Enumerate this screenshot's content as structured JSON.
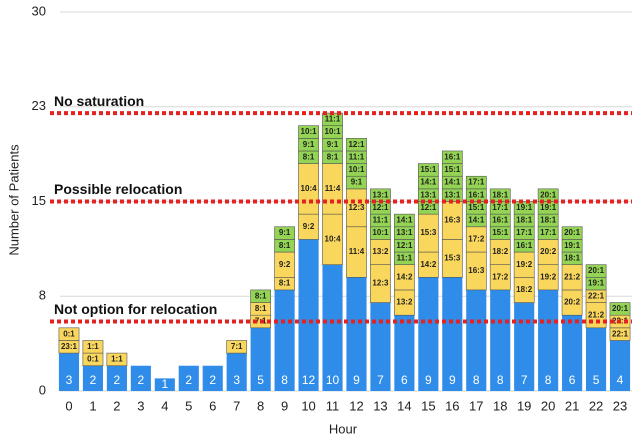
{
  "chart_data": {
    "type": "stacked-bar",
    "y_label": "Number of Patients",
    "x_label": "Hour",
    "categories": [
      "0",
      "1",
      "2",
      "3",
      "4",
      "5",
      "6",
      "7",
      "8",
      "9",
      "10",
      "11",
      "12",
      "13",
      "14",
      "15",
      "16",
      "17",
      "18",
      "19",
      "20",
      "21",
      "22",
      "23"
    ],
    "ylim": [
      0,
      30
    ],
    "yticks": [
      0,
      {
        "value": 7.5,
        "label": "8"
      },
      15,
      {
        "value": 22.5,
        "label": "23"
      },
      30
    ],
    "grid": true,
    "reference_lines": [
      {
        "label": "No saturation",
        "value": 22,
        "color": "#e52222"
      },
      {
        "label": "Possible relocation",
        "value": 15,
        "color": "#e52222"
      },
      {
        "label": "Not option for relocation",
        "value": 5.5,
        "color": "#e52222"
      }
    ],
    "bars": [
      {
        "segments": [
          {
            "value": 3,
            "color": "#2f8ce8"
          },
          {
            "value": 1,
            "label": "23:1",
            "color": "#f9d65c"
          },
          {
            "value": 1,
            "label": "0:1",
            "color": "#f9d65c"
          }
        ]
      },
      {
        "segments": [
          {
            "value": 2,
            "color": "#2f8ce8"
          },
          {
            "value": 1,
            "label": "0:1",
            "color": "#f9d65c"
          },
          {
            "value": 1,
            "label": "1:1",
            "color": "#f9d65c"
          }
        ]
      },
      {
        "segments": [
          {
            "value": 2,
            "color": "#2f8ce8"
          },
          {
            "value": 1,
            "label": "1:1",
            "color": "#f9d65c"
          }
        ]
      },
      {
        "segments": [
          {
            "value": 2,
            "color": "#2f8ce8"
          }
        ]
      },
      {
        "segments": [
          {
            "value": 1,
            "color": "#2f8ce8"
          }
        ]
      },
      {
        "segments": [
          {
            "value": 2,
            "color": "#2f8ce8"
          }
        ]
      },
      {
        "segments": [
          {
            "value": 2,
            "color": "#2f8ce8"
          }
        ]
      },
      {
        "segments": [
          {
            "value": 3,
            "color": "#2f8ce8"
          },
          {
            "value": 1,
            "label": "7:1",
            "color": "#f9d65c"
          }
        ]
      },
      {
        "segments": [
          {
            "value": 5,
            "color": "#2f8ce8"
          },
          {
            "value": 1,
            "label": "7:1",
            "color": "#f9d65c"
          },
          {
            "value": 1,
            "label": "8:1",
            "color": "#f9d65c"
          },
          {
            "value": 1,
            "label": "8:1",
            "color": "#94d454"
          }
        ]
      },
      {
        "segments": [
          {
            "value": 8,
            "color": "#2f8ce8"
          },
          {
            "value": 1,
            "label": "8:1",
            "color": "#f9d65c"
          },
          {
            "value": 2,
            "label": "9:2",
            "color": "#f9d65c"
          },
          {
            "value": 1,
            "label": "8:1",
            "color": "#94d454"
          },
          {
            "value": 1,
            "label": "9:1",
            "color": "#94d454"
          }
        ]
      },
      {
        "segments": [
          {
            "value": 12,
            "color": "#2f8ce8"
          },
          {
            "value": 2,
            "label": "9:2",
            "color": "#f9d65c"
          },
          {
            "value": 4,
            "label": "10:4",
            "color": "#f9d65c"
          },
          {
            "value": 1,
            "label": "8:1",
            "color": "#94d454"
          },
          {
            "value": 1,
            "label": "9:1",
            "color": "#94d454"
          },
          {
            "value": 1,
            "label": "10:1",
            "color": "#94d454"
          }
        ]
      },
      {
        "segments": [
          {
            "value": 10,
            "color": "#2f8ce8"
          },
          {
            "value": 4,
            "label": "10:4",
            "color": "#f9d65c"
          },
          {
            "value": 4,
            "label": "11:4",
            "color": "#f9d65c"
          },
          {
            "value": 1,
            "label": "8:1",
            "color": "#94d454"
          },
          {
            "value": 1,
            "label": "9:1",
            "color": "#94d454"
          },
          {
            "value": 1,
            "label": "10:1",
            "color": "#94d454"
          },
          {
            "value": 1,
            "label": "11:1",
            "color": "#94d454"
          }
        ]
      },
      {
        "segments": [
          {
            "value": 9,
            "color": "#2f8ce8"
          },
          {
            "value": 4,
            "label": "11:4",
            "color": "#f9d65c"
          },
          {
            "value": 3,
            "label": "12:3",
            "color": "#f9d65c"
          },
          {
            "value": 1,
            "label": "9:1",
            "color": "#94d454"
          },
          {
            "value": 1,
            "label": "10:1",
            "color": "#94d454"
          },
          {
            "value": 1,
            "label": "11:1",
            "color": "#94d454"
          },
          {
            "value": 1,
            "label": "12:1",
            "color": "#94d454"
          }
        ]
      },
      {
        "segments": [
          {
            "value": 7,
            "color": "#2f8ce8"
          },
          {
            "value": 3,
            "label": "12:3",
            "color": "#f9d65c"
          },
          {
            "value": 2,
            "label": "13:2",
            "color": "#f9d65c"
          },
          {
            "value": 1,
            "label": "10:1",
            "color": "#94d454"
          },
          {
            "value": 1,
            "label": "11:1",
            "color": "#94d454"
          },
          {
            "value": 1,
            "label": "12:1",
            "color": "#94d454"
          },
          {
            "value": 1,
            "label": "13:1",
            "color": "#94d454"
          }
        ]
      },
      {
        "segments": [
          {
            "value": 6,
            "color": "#2f8ce8"
          },
          {
            "value": 2,
            "label": "13:2",
            "color": "#f9d65c"
          },
          {
            "value": 2,
            "label": "14:2",
            "color": "#f9d65c"
          },
          {
            "value": 1,
            "label": "11:1",
            "color": "#94d454"
          },
          {
            "value": 1,
            "label": "12:1",
            "color": "#94d454"
          },
          {
            "value": 1,
            "label": "13:1",
            "color": "#94d454"
          },
          {
            "value": 1,
            "label": "14:1",
            "color": "#94d454"
          }
        ]
      },
      {
        "segments": [
          {
            "value": 9,
            "color": "#2f8ce8"
          },
          {
            "value": 2,
            "label": "14:2",
            "color": "#f9d65c"
          },
          {
            "value": 3,
            "label": "15:3",
            "color": "#f9d65c"
          },
          {
            "value": 1,
            "label": "12:1",
            "color": "#94d454"
          },
          {
            "value": 1,
            "label": "13:1",
            "color": "#94d454"
          },
          {
            "value": 1,
            "label": "14:1",
            "color": "#94d454"
          },
          {
            "value": 1,
            "label": "15:1",
            "color": "#94d454"
          }
        ]
      },
      {
        "segments": [
          {
            "value": 9,
            "color": "#2f8ce8"
          },
          {
            "value": 3,
            "label": "15:3",
            "color": "#f9d65c"
          },
          {
            "value": 3,
            "label": "16:3",
            "color": "#f9d65c"
          },
          {
            "value": 1,
            "label": "13:1",
            "color": "#94d454"
          },
          {
            "value": 1,
            "label": "14:1",
            "color": "#94d454"
          },
          {
            "value": 1,
            "label": "15:1",
            "color": "#94d454"
          },
          {
            "value": 1,
            "label": "16:1",
            "color": "#94d454"
          }
        ]
      },
      {
        "segments": [
          {
            "value": 8,
            "color": "#2f8ce8"
          },
          {
            "value": 3,
            "label": "16:3",
            "color": "#f9d65c"
          },
          {
            "value": 2,
            "label": "17:2",
            "color": "#f9d65c"
          },
          {
            "value": 1,
            "label": "14:1",
            "color": "#94d454"
          },
          {
            "value": 1,
            "label": "15:1",
            "color": "#94d454"
          },
          {
            "value": 1,
            "label": "16:1",
            "color": "#94d454"
          },
          {
            "value": 1,
            "label": "17:1",
            "color": "#94d454"
          }
        ]
      },
      {
        "segments": [
          {
            "value": 8,
            "color": "#2f8ce8"
          },
          {
            "value": 2,
            "label": "17:2",
            "color": "#f9d65c"
          },
          {
            "value": 2,
            "label": "18:2",
            "color": "#f9d65c"
          },
          {
            "value": 1,
            "label": "15:1",
            "color": "#94d454"
          },
          {
            "value": 1,
            "label": "16:1",
            "color": "#94d454"
          },
          {
            "value": 1,
            "label": "17:1",
            "color": "#94d454"
          },
          {
            "value": 1,
            "label": "18:1",
            "color": "#94d454"
          }
        ]
      },
      {
        "segments": [
          {
            "value": 7,
            "color": "#2f8ce8"
          },
          {
            "value": 2,
            "label": "18:2",
            "color": "#f9d65c"
          },
          {
            "value": 2,
            "label": "19:2",
            "color": "#f9d65c"
          },
          {
            "value": 1,
            "label": "16:1",
            "color": "#94d454"
          },
          {
            "value": 1,
            "label": "17:1",
            "color": "#94d454"
          },
          {
            "value": 1,
            "label": "18:1",
            "color": "#94d454"
          },
          {
            "value": 1,
            "label": "19:1",
            "color": "#94d454"
          }
        ]
      },
      {
        "segments": [
          {
            "value": 8,
            "color": "#2f8ce8"
          },
          {
            "value": 2,
            "label": "19:2",
            "color": "#f9d65c"
          },
          {
            "value": 2,
            "label": "20:2",
            "color": "#f9d65c"
          },
          {
            "value": 1,
            "label": "17:1",
            "color": "#94d454"
          },
          {
            "value": 1,
            "label": "18:1",
            "color": "#94d454"
          },
          {
            "value": 1,
            "label": "19:1",
            "color": "#94d454"
          },
          {
            "value": 1,
            "label": "20:1",
            "color": "#94d454"
          }
        ]
      },
      {
        "segments": [
          {
            "value": 6,
            "color": "#2f8ce8"
          },
          {
            "value": 2,
            "label": "20:2",
            "color": "#f9d65c"
          },
          {
            "value": 2,
            "label": "21:2",
            "color": "#f9d65c"
          },
          {
            "value": 1,
            "label": "18:1",
            "color": "#94d454"
          },
          {
            "value": 1,
            "label": "19:1",
            "color": "#94d454"
          },
          {
            "value": 1,
            "label": "20:1",
            "color": "#94d454"
          }
        ]
      },
      {
        "segments": [
          {
            "value": 5,
            "color": "#2f8ce8"
          },
          {
            "value": 2,
            "label": "21:2",
            "color": "#f9d65c"
          },
          {
            "value": 1,
            "label": "22:1",
            "color": "#f9d65c"
          },
          {
            "value": 1,
            "label": "19:1",
            "color": "#94d454"
          },
          {
            "value": 1,
            "label": "20:1",
            "color": "#94d454"
          }
        ]
      },
      {
        "segments": [
          {
            "value": 4,
            "color": "#2f8ce8"
          },
          {
            "value": 1,
            "label": "22:1",
            "color": "#f9d65c"
          },
          {
            "value": 1,
            "label": "23:1",
            "color": "#f9d65c"
          },
          {
            "value": 1,
            "label": "20:1",
            "color": "#94d454"
          }
        ]
      }
    ]
  }
}
